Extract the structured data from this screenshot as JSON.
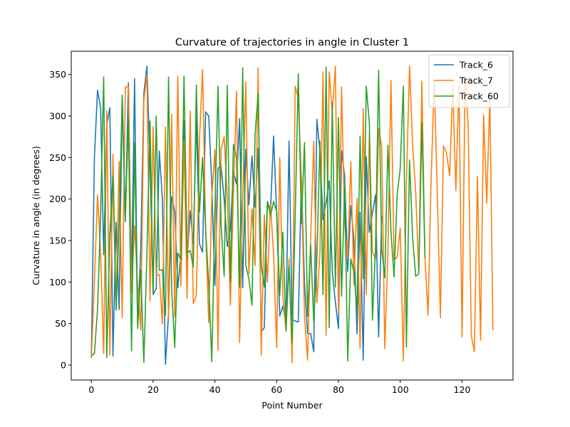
{
  "chart_data": {
    "type": "line",
    "title": "Curvature of trajectories in angle in Cluster 1",
    "xlabel": "Point Number",
    "ylabel": "Curvature in angle (in degrees)",
    "xlim": [
      -6.5,
      136.5
    ],
    "ylim": [
      -18,
      378
    ],
    "xticks": [
      0,
      20,
      40,
      60,
      80,
      100,
      120
    ],
    "yticks": [
      0,
      50,
      100,
      150,
      200,
      250,
      300,
      350
    ],
    "grid": false,
    "legend_position": "top-right",
    "series": [
      {
        "name": "Track_6",
        "color": "#1f77b4",
        "values": [
          10,
          250,
          331,
          310,
          133,
          290,
          310,
          11,
          172,
          67,
          322,
          173,
          340,
          98,
          345,
          45,
          140,
          327,
          360,
          242,
          85,
          92,
          258,
          200,
          1,
          62,
          203,
          185,
          93,
          133,
          295,
          125,
          186,
          146,
          296,
          146,
          136,
          305,
          300,
          217,
          96,
          237,
          240,
          200,
          143,
          163,
          233,
          218,
          297,
          93,
          260,
          193,
          252,
          190,
          261,
          40,
          45,
          197,
          185,
          276,
          182,
          59,
          71,
          50,
          270,
          55,
          53,
          52,
          225,
          100,
          38,
          38,
          16,
          296,
          258,
          175,
          196,
          222,
          112,
          76,
          44,
          258,
          228,
          113,
          192,
          152,
          38,
          184,
          6,
          251,
          160,
          183,
          205,
          34,
          180
        ]
      },
      {
        "name": "Track_7",
        "color": "#ff7f0e",
        "values": [
          8,
          100,
          205,
          135,
          14,
          306,
          12,
          254,
          67,
          245,
          57,
          335,
          335,
          87,
          168,
          96,
          42,
          319,
          350,
          77,
          287,
          109,
          109,
          50,
          287,
          56,
          302,
          58,
          348,
          95,
          270,
          80,
          306,
          74,
          84,
          270,
          356,
          164,
          51,
          201,
          260,
          18,
          260,
          275,
          202,
          72,
          205,
          330,
          27,
          200,
          341,
          110,
          188,
          120,
          358,
          12,
          181,
          100,
          194,
          133,
          21,
          250,
          82,
          42,
          128,
          3,
          336,
          321,
          223,
          60,
          6,
          152,
          270,
          75,
          135,
          353,
          36,
          353,
          305,
          360,
          63,
          335,
          170,
          128,
          245,
          97,
          201,
          20,
          309,
          85,
          278,
          136,
          128,
          285,
          263,
          20,
          135,
          343,
          127,
          130,
          165,
          5,
          220,
          360,
          266,
          208,
          111,
          342,
          130,
          60,
          224,
          342,
          206,
          57,
          264,
          255,
          228,
          337,
          210,
          341,
          34,
          346,
          288,
          36,
          16,
          227,
          30,
          301,
          195,
          324,
          42
        ]
      },
      {
        "name": "Track_60",
        "color": "#2ca02c",
        "values": [
          11,
          14,
          66,
          180,
          347,
          9,
          158,
          228,
          66,
          171,
          325,
          176,
          296,
          17,
          268,
          44,
          115,
          3,
          134,
          294,
          86,
          300,
          114,
          115,
          60,
          347,
          92,
          21,
          135,
          127,
          348,
          135,
          138,
          118,
          337,
          184,
          250,
          163,
          98,
          4,
          185,
          336,
          170,
          107,
          337,
          100,
          266,
          250,
          94,
          358,
          120,
          104,
          72,
          278,
          327,
          120,
          94,
          197,
          180,
          197,
          185,
          84,
          160,
          41,
          120,
          27,
          180,
          351,
          170,
          268,
          59,
          145,
          52,
          126,
          270,
          85,
          359,
          45,
          316,
          94,
          298,
          83,
          215,
          5,
          128,
          112,
          65,
          276,
          104,
          336,
          292,
          54,
          143,
          355,
          140,
          105,
          265,
          160,
          106,
          205,
          237,
          336,
          22,
          247,
          154,
          107,
          110,
          292,
          129
        ]
      }
    ]
  }
}
